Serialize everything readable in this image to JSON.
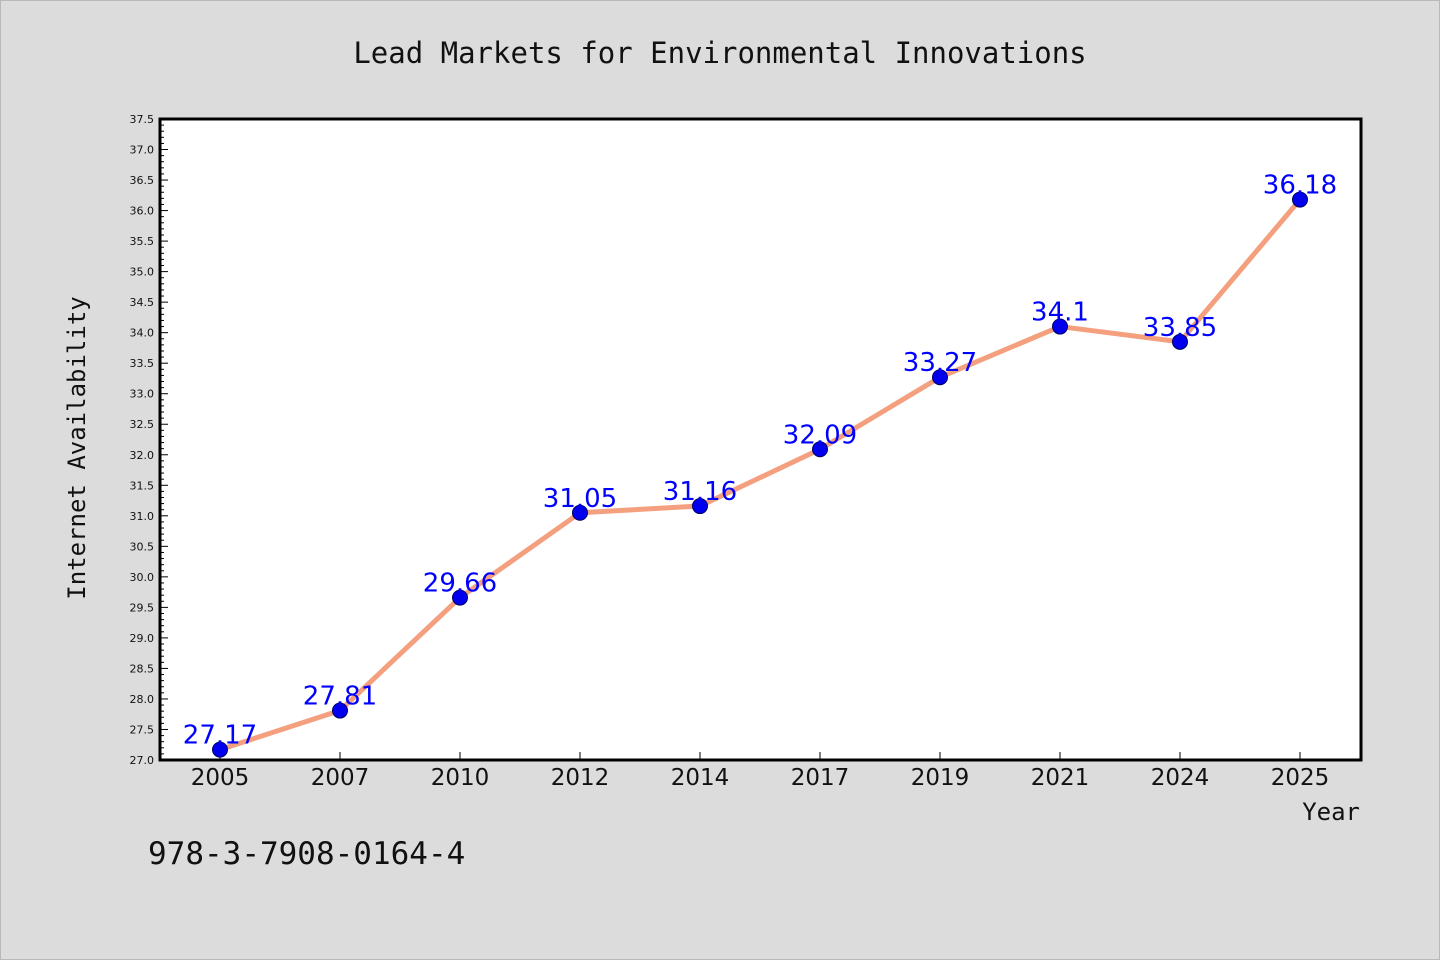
{
  "chart_data": {
    "type": "line",
    "title": "Lead Markets for Environmental Innovations",
    "xlabel": "Year",
    "ylabel": "Internet Availability",
    "categories": [
      "2005",
      "2007",
      "2010",
      "2012",
      "2014",
      "2017",
      "2019",
      "2021",
      "2024",
      "2025"
    ],
    "series": [
      {
        "values": [
          27.17,
          27.81,
          29.66,
          31.05,
          31.16,
          32.09,
          33.27,
          34.1,
          33.85,
          36.18
        ]
      }
    ],
    "data_labels": [
      "27.17",
      "27.81",
      "29.66",
      "31.05",
      "31.16",
      "32.09",
      "33.27",
      "34.1",
      "33.85",
      "36.18"
    ],
    "ylim": [
      27.0,
      37.5
    ],
    "ytick_step": 0.5,
    "ytick_decimals": 1,
    "grid": false,
    "line_color": "#f4a07e",
    "marker_color": "#0000ee",
    "label_color": "#0000ff"
  },
  "footnote": "978-3-7908-0164-4"
}
